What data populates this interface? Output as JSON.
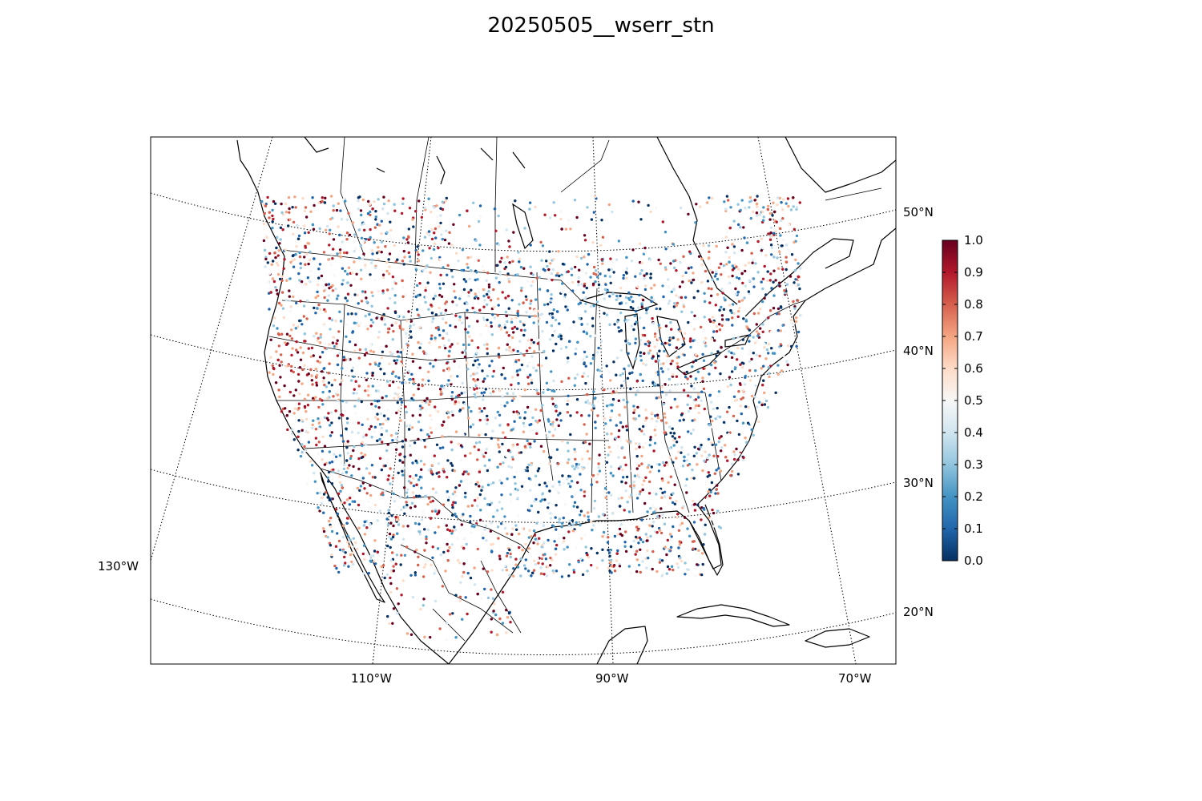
{
  "title": "20250505__wserr_stn",
  "map": {
    "longitude_labels": [
      "130°W",
      "110°W",
      "90°W",
      "70°W"
    ],
    "latitude_labels": [
      "50°N",
      "40°N",
      "30°N",
      "20°N"
    ]
  },
  "colorbar": {
    "colormap": "RdBu_r",
    "min": 0.0,
    "max": 1.0,
    "tick_labels": [
      "0.0",
      "0.1",
      "0.2",
      "0.3",
      "0.4",
      "0.5",
      "0.6",
      "0.7",
      "0.8",
      "0.9",
      "1.0"
    ],
    "colors": [
      "#053061",
      "#2166ac",
      "#4393c3",
      "#92c5de",
      "#d1e5f0",
      "#f7f7f7",
      "#fddbc7",
      "#f4a582",
      "#d6604d",
      "#b2182b",
      "#67001f"
    ]
  }
}
